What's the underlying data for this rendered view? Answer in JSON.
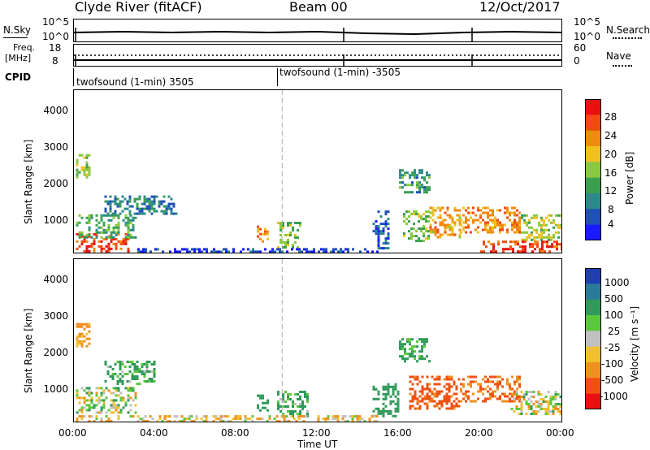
{
  "header": {
    "station": "Clyde River (fitACF)",
    "beam": "Beam 00",
    "date": "12/Oct/2017"
  },
  "strip_labels": {
    "nsky": "N.Sky",
    "nsky_top": "10^5",
    "nsky_bottom": "10^0",
    "nsearch": "N.Search",
    "nsearch_top": "10^5",
    "nsearch_bottom": "10^0",
    "freq": "Freq.",
    "freq_unit": "[MHz]",
    "freq_top": "18",
    "freq_bottom": "8",
    "nave": "Nave",
    "nave_top": "60",
    "nave_bottom": "0",
    "cpid": "CPID",
    "cpid_1": "twofsound (1-min) 3505",
    "cpid_2": "twofsound (1-min) -3505"
  },
  "chart_data": [
    {
      "type": "heatmap",
      "name": "power",
      "ylabel": "Slant Range [km]",
      "xlabel": "",
      "ylim": [
        180,
        4500
      ],
      "yticks": [
        "1000",
        "2000",
        "3000",
        "4000"
      ],
      "colorbar_label": "Power [dB]",
      "colorbar_ticks": [
        "28",
        "24",
        "20",
        "16",
        "12",
        "8",
        "4"
      ],
      "colorbar_range": [
        0,
        30
      ],
      "colors": [
        "#1a1aff",
        "#1f4fb8",
        "#2b8a8a",
        "#3aa050",
        "#8ac83c",
        "#f0c020",
        "#f08a10",
        "#f04a10",
        "#e81010"
      ],
      "regions": [
        {
          "t_start": 0.1,
          "t_end": 2.7,
          "r_start": 200,
          "r_end": 700,
          "value": 26
        },
        {
          "t_start": 0.1,
          "t_end": 3.0,
          "r_start": 600,
          "r_end": 1200,
          "value": 12
        },
        {
          "t_start": 1.5,
          "t_end": 5.0,
          "r_start": 1200,
          "r_end": 1700,
          "value": 8
        },
        {
          "t_start": 0.1,
          "t_end": 0.8,
          "r_start": 2200,
          "r_end": 2800,
          "value": 14
        },
        {
          "t_start": 9.0,
          "t_end": 9.5,
          "r_start": 500,
          "r_end": 900,
          "value": 22
        },
        {
          "t_start": 10.0,
          "t_end": 11.2,
          "r_start": 300,
          "r_end": 1000,
          "value": 14
        },
        {
          "t_start": 14.7,
          "t_end": 15.5,
          "r_start": 300,
          "r_end": 1300,
          "value": 6
        },
        {
          "t_start": 16.0,
          "t_end": 17.5,
          "r_start": 1800,
          "r_end": 2400,
          "value": 10
        },
        {
          "t_start": 16.2,
          "t_end": 17.5,
          "r_start": 500,
          "r_end": 1300,
          "value": 14
        },
        {
          "t_start": 17.5,
          "t_end": 19.0,
          "r_start": 600,
          "r_end": 1400,
          "value": 20
        },
        {
          "t_start": 19.0,
          "t_end": 22.0,
          "r_start": 700,
          "r_end": 1400,
          "value": 22
        },
        {
          "t_start": 22.0,
          "t_end": 24.0,
          "r_start": 500,
          "r_end": 1200,
          "value": 16
        },
        {
          "t_start": 20.0,
          "t_end": 24.0,
          "r_start": 180,
          "r_end": 500,
          "value": 26
        },
        {
          "t_start": 3.0,
          "t_end": 15.0,
          "r_start": 180,
          "r_end": 300,
          "value": 4
        }
      ]
    },
    {
      "type": "heatmap",
      "name": "velocity",
      "ylabel": "Slant Range [km]",
      "xlabel": "Time UT",
      "ylim": [
        180,
        4500
      ],
      "yticks": [
        "1000",
        "2000",
        "3000",
        "4000"
      ],
      "xticks": [
        "00:00",
        "04:00",
        "08:00",
        "12:00",
        "16:00",
        "20:00",
        "00:00"
      ],
      "colorbar_label": "Velocity [m s⁻¹]",
      "colorbar_ticks": [
        "1000",
        "500",
        "100",
        "25",
        "-25",
        "-100",
        "-500",
        "-1000"
      ],
      "colors": [
        "#1f3fb0",
        "#2a7a9a",
        "#2f9a5a",
        "#5ac83a",
        "#c0c0c0",
        "#f0c030",
        "#f09020",
        "#f05010",
        "#e81010"
      ],
      "regions": [
        {
          "t_start": 0.1,
          "t_end": 3.0,
          "r_start": 400,
          "r_end": 1100,
          "value": 0
        },
        {
          "t_start": 0.1,
          "t_end": 0.8,
          "r_start": 2200,
          "r_end": 2800,
          "value": -200
        },
        {
          "t_start": 1.5,
          "t_end": 4.0,
          "r_start": 1200,
          "r_end": 1800,
          "value": 150
        },
        {
          "t_start": 9.0,
          "t_end": 9.5,
          "r_start": 500,
          "r_end": 900,
          "value": 300
        },
        {
          "t_start": 10.0,
          "t_end": 11.5,
          "r_start": 300,
          "r_end": 1000,
          "value": 150
        },
        {
          "t_start": 14.7,
          "t_end": 16.0,
          "r_start": 300,
          "r_end": 1200,
          "value": 300
        },
        {
          "t_start": 16.0,
          "t_end": 17.5,
          "r_start": 1800,
          "r_end": 2400,
          "value": 200
        },
        {
          "t_start": 16.5,
          "t_end": 19.0,
          "r_start": 500,
          "r_end": 1400,
          "value": -600
        },
        {
          "t_start": 19.0,
          "t_end": 22.0,
          "r_start": 700,
          "r_end": 1400,
          "value": -500
        },
        {
          "t_start": 21.5,
          "t_end": 24.0,
          "r_start": 400,
          "r_end": 1000,
          "value": 0
        },
        {
          "t_start": 0.1,
          "t_end": 15.0,
          "r_start": 180,
          "r_end": 350,
          "value": -80
        }
      ]
    }
  ]
}
